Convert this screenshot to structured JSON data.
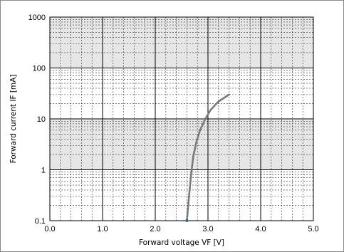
{
  "chart_data": {
    "type": "line",
    "xlabel": "Forward voltage VF [V]",
    "ylabel": "Forward current IF [mA]",
    "xlim": [
      0.0,
      5.0
    ],
    "ylim": [
      0.1,
      1000
    ],
    "yscale": "log",
    "x_ticks": [
      "0.0",
      "1.0",
      "2.0",
      "3.0",
      "4.0",
      "5.0"
    ],
    "y_ticks": [
      "0.1",
      "1",
      "10",
      "100",
      "1000"
    ],
    "grid": true,
    "shaded_decades": [
      [
        1,
        10
      ],
      [
        100,
        1000
      ]
    ],
    "series": [
      {
        "x": [
          2.6,
          2.64,
          2.68,
          2.72,
          2.78,
          2.85,
          2.95,
          3.05,
          3.2,
          3.4
        ],
        "y": [
          0.1,
          0.3,
          0.8,
          1.8,
          3.5,
          6,
          10,
          15,
          22,
          30
        ],
        "color": "#7a7a7a"
      }
    ]
  }
}
